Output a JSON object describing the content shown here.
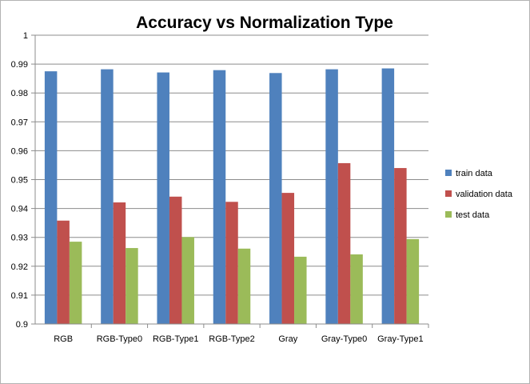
{
  "chart_data": {
    "type": "bar",
    "title": "Accuracy vs Normalization Type",
    "xlabel": "",
    "ylabel": "",
    "categories": [
      "RGB",
      "RGB-Type0",
      "RGB-Type1",
      "RGB-Type2",
      "Gray",
      "Gray-Type0",
      "Gray-Type1"
    ],
    "series": [
      {
        "name": "train data",
        "color": "#4f81bd",
        "values": [
          0.9875,
          0.9882,
          0.9871,
          0.9879,
          0.9869,
          0.9882,
          0.9885
        ]
      },
      {
        "name": "validation data",
        "color": "#c0504d",
        "values": [
          0.9358,
          0.9421,
          0.9441,
          0.9423,
          0.9454,
          0.9557,
          0.954
        ]
      },
      {
        "name": "test data",
        "color": "#9bbb59",
        "values": [
          0.9285,
          0.9263,
          0.9301,
          0.9261,
          0.9233,
          0.9241,
          0.9294
        ]
      }
    ],
    "ylim": [
      0.9,
      1.0
    ],
    "yticks": [
      "0.9",
      "0.91",
      "0.92",
      "0.93",
      "0.94",
      "0.95",
      "0.96",
      "0.97",
      "0.98",
      "0.99",
      "1"
    ],
    "grid": true,
    "legend_position": "right"
  }
}
